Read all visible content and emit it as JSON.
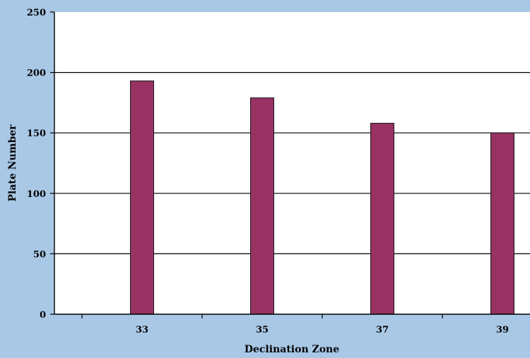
{
  "chart_data": {
    "type": "bar",
    "title": "",
    "xlabel": "Declination Zone",
    "ylabel": "Plate Number",
    "categories": [
      "33",
      "35",
      "37",
      "39"
    ],
    "values": [
      193,
      179,
      158,
      150
    ],
    "ylim": [
      0,
      250
    ],
    "yticks": [
      0,
      50,
      100,
      150,
      200,
      250
    ],
    "grid": "horizontal",
    "legend": "none",
    "colors": {
      "background": "#a9c8e6",
      "plot_area": "#ffffff",
      "bar_fill": "#973263",
      "bar_stroke": "#1a1a1a",
      "gridline": "#000000"
    }
  }
}
